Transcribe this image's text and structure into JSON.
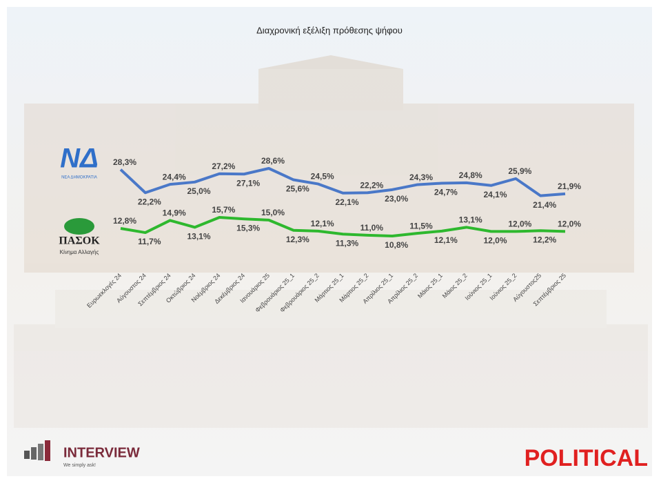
{
  "chart_data": {
    "type": "line",
    "title": "Διαχρονική εξέλιξη πρόθεσης ψήφου",
    "categories": [
      "Ευρωεκλογές 24",
      "Αύγουστος 24",
      "Σεπτέμβριος 24",
      "Οκτώβριος 24",
      "Νοέμβριος 24",
      "Δεκέμβριος 24",
      "Ιανουάριος 25",
      "Φεβρουάριος 25_1",
      "Φεβρουάριος 25_2",
      "Μάρτιος 25_1",
      "Μάρτιος 25_2",
      "Απρίλιος 25_1",
      "Απρίλιος 25_2",
      "Μάιος 25_1",
      "Μάιος 25_2",
      "Ιούνιος 25_1",
      "Ιούνιος 25_2",
      "Αύγουστος25",
      "Σεπτέμβριος 25"
    ],
    "series": [
      {
        "name": "ΝΕΑ ΔΗΜΟΚΡΑΤΙΑ",
        "color": "#4a78c8",
        "values": [
          28.3,
          22.2,
          24.4,
          25.0,
          27.2,
          27.1,
          28.6,
          25.6,
          24.5,
          22.1,
          22.2,
          23.0,
          24.3,
          24.7,
          24.8,
          24.1,
          25.9,
          21.4,
          21.9
        ],
        "value_labels": [
          "28,3%",
          "22,2%",
          "24,4%",
          "25,0%",
          "27,2%",
          "27,1%",
          "28,6%",
          "25,6%",
          "24,5%",
          "22,1%",
          "22,2%",
          "23,0%",
          "24,3%",
          "24,7%",
          "24,8%",
          "24,1%",
          "25,9%",
          "21,4%",
          "21,9%"
        ]
      },
      {
        "name": "ΠΑΣΟΚ",
        "color": "#2eb82e",
        "values": [
          12.8,
          11.7,
          14.9,
          13.1,
          15.7,
          15.3,
          15.0,
          12.3,
          12.1,
          11.3,
          11.0,
          10.8,
          11.5,
          12.1,
          13.1,
          12.0,
          12.0,
          12.2,
          12.0
        ],
        "value_labels": [
          "12,8%",
          "11,7%",
          "14,9%",
          "13,1%",
          "15,7%",
          "15,3%",
          "15,0%",
          "12,3%",
          "12,1%",
          "11,3%",
          "11,0%",
          "10,8%",
          "11,5%",
          "12,1%",
          "13,1%",
          "12,0%",
          "12,0%",
          "12,2%",
          "12,0%"
        ]
      }
    ]
  },
  "logos": {
    "nd_mark": "ΝΔ",
    "pasok_sub": "Κίνημα Αλλαγής",
    "interview": "INTERVIEW",
    "interview_sub": "We simply ask!",
    "political": "POLITICAL"
  }
}
